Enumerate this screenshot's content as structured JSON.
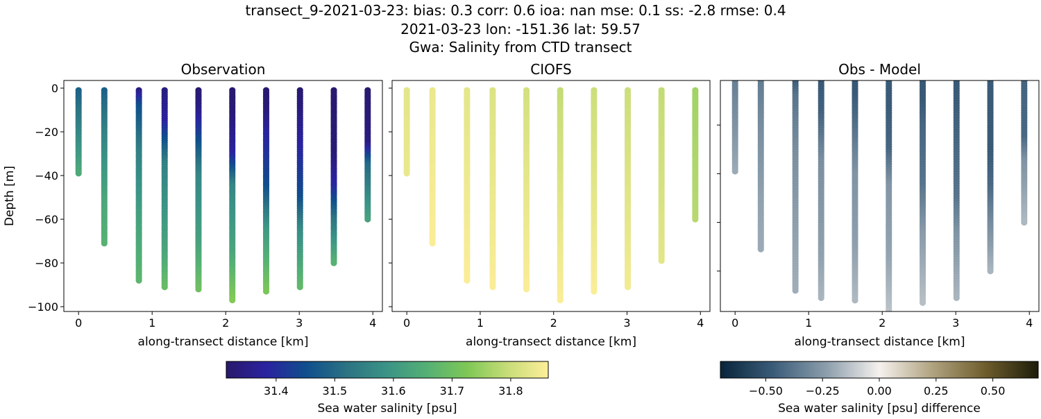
{
  "title_lines": [
    "transect_9-2021-03-23: bias: 0.3  corr: 0.6  ioa: nan  mse: 0.1  ss: -2.8  rmse: 0.4",
    "2021-03-23 lon: -151.36 lat: 59.57",
    "Gwa: Salinity from CTD transect"
  ],
  "chart_data": {
    "type": "scatter",
    "stations_x_km": [
      0,
      0.35,
      0.82,
      1.17,
      1.63,
      2.09,
      2.55,
      3.01,
      3.47,
      3.93
    ],
    "station_max_depth_m": [
      39,
      71,
      88,
      91,
      92,
      97,
      93,
      91,
      80,
      60
    ],
    "observation_profiles": [
      [
        [
          0,
          31.48
        ],
        [
          15,
          31.54
        ],
        [
          30,
          31.6
        ],
        [
          39,
          31.64
        ]
      ],
      [
        [
          0,
          31.48
        ],
        [
          20,
          31.55
        ],
        [
          50,
          31.63
        ],
        [
          71,
          31.66
        ]
      ],
      [
        [
          0,
          31.33
        ],
        [
          8,
          31.45
        ],
        [
          30,
          31.55
        ],
        [
          60,
          31.62
        ],
        [
          88,
          31.67
        ]
      ],
      [
        [
          0,
          31.34
        ],
        [
          15,
          31.38
        ],
        [
          35,
          31.55
        ],
        [
          75,
          31.63
        ],
        [
          91,
          31.69
        ]
      ],
      [
        [
          0,
          31.32
        ],
        [
          8,
          31.34
        ],
        [
          20,
          31.42
        ],
        [
          40,
          31.56
        ],
        [
          70,
          31.62
        ],
        [
          92,
          31.7
        ]
      ],
      [
        [
          0,
          31.32
        ],
        [
          12,
          31.33
        ],
        [
          30,
          31.38
        ],
        [
          45,
          31.56
        ],
        [
          75,
          31.63
        ],
        [
          97,
          31.73
        ]
      ],
      [
        [
          0,
          31.32
        ],
        [
          10,
          31.33
        ],
        [
          20,
          31.38
        ],
        [
          45,
          31.45
        ],
        [
          65,
          31.6
        ],
        [
          93,
          31.72
        ]
      ],
      [
        [
          0,
          31.32
        ],
        [
          10,
          31.34
        ],
        [
          25,
          31.38
        ],
        [
          50,
          31.45
        ],
        [
          65,
          31.57
        ],
        [
          91,
          31.68
        ]
      ],
      [
        [
          0,
          31.32
        ],
        [
          30,
          31.33
        ],
        [
          45,
          31.39
        ],
        [
          60,
          31.52
        ],
        [
          80,
          31.66
        ]
      ],
      [
        [
          0,
          31.32
        ],
        [
          25,
          31.34
        ],
        [
          35,
          31.5
        ],
        [
          60,
          31.62
        ]
      ]
    ],
    "model_profiles": [
      [
        [
          0,
          31.83
        ],
        [
          39,
          31.84
        ]
      ],
      [
        [
          0,
          31.84
        ],
        [
          71,
          31.86
        ]
      ],
      [
        [
          0,
          31.83
        ],
        [
          88,
          31.86
        ]
      ],
      [
        [
          0,
          31.82
        ],
        [
          91,
          31.86
        ]
      ],
      [
        [
          0,
          31.81
        ],
        [
          92,
          31.86
        ]
      ],
      [
        [
          0,
          31.79
        ],
        [
          97,
          31.86
        ]
      ],
      [
        [
          0,
          31.8
        ],
        [
          93,
          31.86
        ]
      ],
      [
        [
          0,
          31.8
        ],
        [
          91,
          31.85
        ]
      ],
      [
        [
          0,
          31.79
        ],
        [
          79,
          31.83
        ]
      ],
      [
        [
          0,
          31.76
        ],
        [
          60,
          31.78
        ]
      ]
    ],
    "panels": [
      {
        "title": "Observation",
        "xlabel": "along-transect distance [km]",
        "ylabel": "Depth [m]",
        "xlim": [
          -0.2,
          4.13
        ],
        "ylim": [
          -102.2,
          3.5
        ],
        "yticks": [
          0,
          -20,
          -40,
          -60,
          -80,
          -100
        ],
        "ytick_labels_shown": true
      },
      {
        "title": "CIOFS",
        "xlabel": "along-transect distance [km]",
        "xlim": [
          -0.2,
          4.13
        ],
        "ylim": [
          -102.2,
          3.5
        ],
        "yticks": [
          0,
          -20,
          -40,
          -60,
          -80,
          -100
        ],
        "ytick_labels_shown": false
      },
      {
        "title": "Obs - Model",
        "xlabel": "along-transect distance [km]",
        "xlim": [
          -0.2,
          4.13
        ],
        "ylim": [
          -96.6,
          -1.7
        ],
        "yticks": [
          -20,
          -40,
          -60,
          -80
        ],
        "ytick_labels_shown": false
      }
    ],
    "xticks": [
      0,
      1,
      2,
      3,
      4
    ],
    "colorbars": [
      {
        "label": "Sea water salinity [psu]",
        "range": [
          31.315,
          31.864
        ],
        "ticks": [
          "31.4",
          "31.5",
          "31.6",
          "31.7",
          "31.8"
        ],
        "tick_values": [
          31.4,
          31.5,
          31.6,
          31.7,
          31.8
        ],
        "colormap": "haline"
      },
      {
        "label": "Sea water salinity [psu] difference",
        "range": [
          -0.7,
          0.7
        ],
        "ticks": [
          "−0.50",
          "−0.25",
          "0.00",
          "0.25",
          "0.50"
        ],
        "tick_values": [
          -0.5,
          -0.25,
          0,
          0.25,
          0.5
        ],
        "colormap": "diff"
      }
    ],
    "colormap_stops": {
      "haline": [
        "#29186b",
        "#2a23a0",
        "#0f4f8c",
        "#2c7383",
        "#3b9486",
        "#55b074",
        "#7fc856",
        "#c8dd79",
        "#fdee99"
      ],
      "diff": [
        "#08243b",
        "#3b5c79",
        "#8c9eac",
        "#f5f1ee",
        "#b0a380",
        "#6e5d2c",
        "#1d1c0a"
      ]
    },
    "grid": false
  }
}
